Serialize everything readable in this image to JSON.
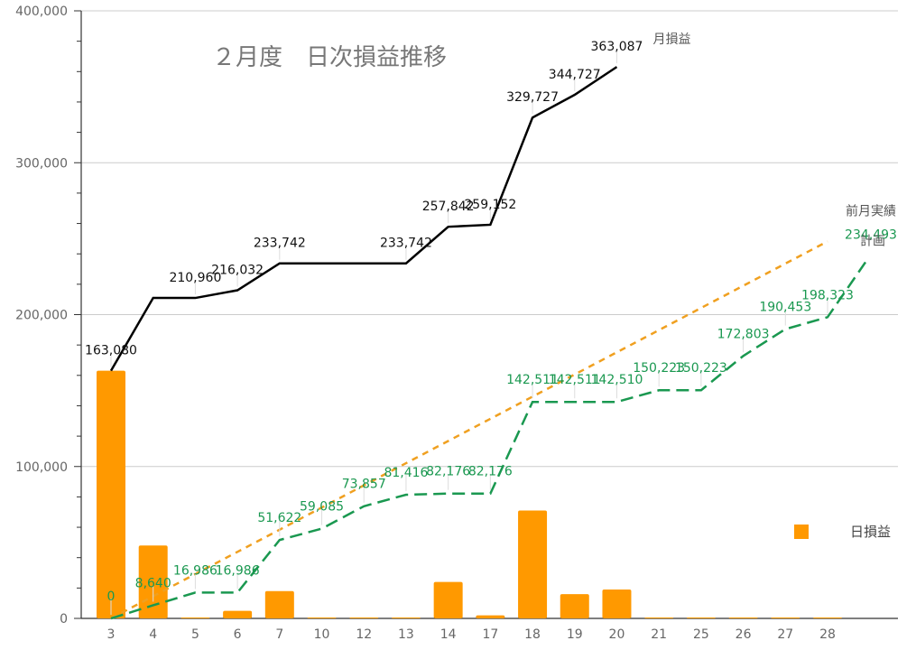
{
  "chart_data": {
    "type": "bar+line",
    "title": "２月度　日次損益推移",
    "categories": [
      "3",
      "4",
      "5",
      "6",
      "7",
      "10",
      "12",
      "13",
      "14",
      "17",
      "18",
      "19",
      "20",
      "21",
      "25",
      "26",
      "27",
      "28"
    ],
    "ylim": [
      0,
      400000
    ],
    "yticks": [
      0,
      100000,
      200000,
      300000,
      400000
    ],
    "ytick_labels": [
      "0",
      "100,000",
      "200,000",
      "300,000",
      "400,000"
    ],
    "grid": true,
    "legend": "right",
    "colors": {
      "daily_bar": "#ff9900",
      "monthly_line": "#000000",
      "plan_line": "#f0a020",
      "prev_line": "#1a9850"
    },
    "series": [
      {
        "name": "日損益",
        "kind": "bar",
        "values": [
          163080,
          48000,
          0,
          5000,
          18000,
          0,
          0,
          0,
          24000,
          2000,
          71000,
          16000,
          19000,
          0,
          0,
          0,
          0,
          0
        ]
      },
      {
        "name": "月損益",
        "kind": "line",
        "values": [
          163080,
          210960,
          210960,
          216032,
          233742,
          233742,
          233742,
          233742,
          257842,
          259152,
          329727,
          344727,
          363087,
          null,
          null,
          null,
          null,
          null
        ],
        "labels": [
          "163,080",
          "",
          "210,960",
          "216,032",
          "233,742",
          "",
          "",
          "233,742",
          "257,842",
          "259,152",
          "329,727",
          "344,727",
          "363,087",
          "",
          "",
          "",
          "",
          ""
        ]
      },
      {
        "name": "計画",
        "kind": "line",
        "values": [
          0,
          14600,
          29200,
          43800,
          58400,
          73000,
          87600,
          102200,
          116800,
          131400,
          146000,
          160600,
          175200,
          189800,
          204400,
          219000,
          233600,
          248200
        ]
      },
      {
        "name": "前月実績",
        "kind": "line",
        "values": [
          0,
          8640,
          16986,
          16986,
          51622,
          59085,
          73857,
          81416,
          82176,
          82176,
          142511,
          142511,
          142510,
          150223,
          150223,
          172803,
          190453,
          198323
        ],
        "extra_point_value": 234493,
        "labels": [
          "0",
          "8,640",
          "16,986",
          "16,986",
          "51,622",
          "59,085",
          "73,857",
          "81,416",
          "82,176",
          "82,176",
          "142,511",
          "142,511",
          "142,510",
          "150,223",
          "150,223",
          "172,803",
          "190,453",
          "198,323"
        ],
        "extra_label": "234,493"
      }
    ]
  }
}
